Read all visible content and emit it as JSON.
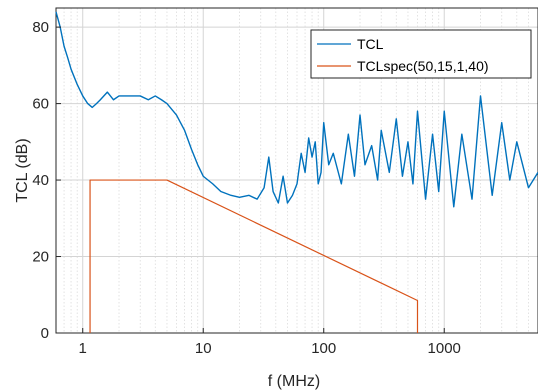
{
  "chart_data": {
    "type": "line",
    "xlabel": "f (MHz)",
    "ylabel": "TCL (dB)",
    "x_scale": "log",
    "xlim": [
      0.6,
      6000
    ],
    "ylim": [
      0,
      85
    ],
    "x_ticks": [
      1,
      10,
      100,
      1000
    ],
    "x_tick_labels": [
      "1",
      "10",
      "100",
      "1000"
    ],
    "y_ticks": [
      0,
      20,
      40,
      60,
      80
    ],
    "y_tick_labels": [
      "0",
      "20",
      "40",
      "60",
      "80"
    ],
    "grid": true,
    "minor_grid_x": true,
    "legend_position": "top-right",
    "series": [
      {
        "name": "TCL",
        "color": "#0072BD",
        "x": [
          0.6,
          0.65,
          0.7,
          0.75,
          0.8,
          0.9,
          1.0,
          1.1,
          1.2,
          1.3,
          1.4,
          1.6,
          1.8,
          2.0,
          2.5,
          3,
          3.5,
          4,
          4.5,
          5,
          6,
          7,
          8,
          9,
          10,
          12,
          14,
          17,
          20,
          24,
          28,
          32,
          35,
          38,
          42,
          46,
          50,
          55,
          60,
          65,
          70,
          75,
          80,
          85,
          90,
          95,
          100,
          110,
          120,
          140,
          160,
          180,
          200,
          220,
          250,
          280,
          300,
          350,
          400,
          450,
          500,
          550,
          600,
          700,
          800,
          900,
          1000,
          1200,
          1400,
          1700,
          2000,
          2500,
          3000,
          3500,
          4000,
          5000,
          6000
        ],
        "y": [
          84,
          80,
          75,
          72,
          69,
          65,
          62,
          60,
          59,
          60,
          61,
          63,
          61,
          62,
          62,
          62,
          61,
          62,
          61,
          60,
          57,
          53,
          48,
          44,
          41,
          39,
          37,
          36,
          35.5,
          36,
          35,
          38,
          46,
          37,
          34,
          41,
          34,
          36,
          39,
          47,
          42,
          51,
          46,
          50,
          39,
          42,
          55,
          44,
          47,
          39,
          52,
          41,
          57,
          44,
          49,
          40,
          53,
          42,
          56,
          41,
          50,
          39,
          58,
          35,
          52,
          37,
          58,
          33,
          52,
          35,
          62,
          36,
          55,
          40,
          50,
          38,
          42
        ]
      },
      {
        "name": "TCLspec(50,15,1,40)",
        "color": "#D95319",
        "x": [
          1.15,
          1.15,
          5,
          600,
          600
        ],
        "y": [
          0,
          40,
          40,
          8.5,
          0
        ]
      }
    ]
  }
}
